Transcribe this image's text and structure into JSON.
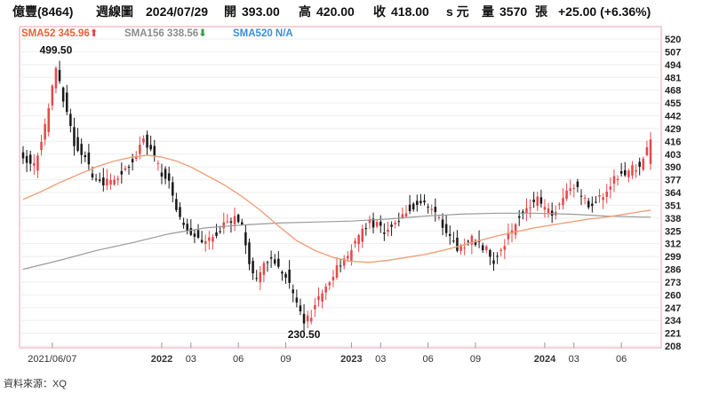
{
  "header": {
    "stock": "億豐(8464)",
    "period": "週線圖",
    "date": "2024/07/29",
    "open_label": "開",
    "open": "393.00",
    "high_label": "高",
    "high": "420.00",
    "close_label": "收",
    "close": "418.00",
    "close_suffix": "s 元",
    "volume_label": "量",
    "volume": "3570",
    "volume_unit": "張",
    "change": "+25.00 (+6.36%)"
  },
  "legend": [
    {
      "text": "SMA52 345.96",
      "arrow": "up",
      "color": "#e8603a"
    },
    {
      "text": "SMA156 338.56",
      "arrow": "down",
      "color": "#8c8c8c"
    },
    {
      "text": "SMA520 N/A",
      "arrow": "",
      "color": "#3a8fd8"
    }
  ],
  "source": "資料來源：XQ",
  "colors": {
    "up": "#e8484a",
    "down": "#1a1a1a",
    "sma52": "#f0a07a",
    "sma156": "#9a9a9a",
    "frame": "#f0a0a8",
    "grid": "#eeeeee"
  },
  "chart_data": {
    "type": "candlestick",
    "ylim": [
      208,
      520
    ],
    "yticks": [
      208,
      221,
      234,
      247,
      260,
      273,
      286,
      299,
      312,
      325,
      338,
      351,
      364,
      377,
      390,
      403,
      416,
      429,
      442,
      455,
      468,
      481,
      494,
      507,
      520
    ],
    "xticks": [
      {
        "label": "2021/06/07",
        "week": 8,
        "bold": false
      },
      {
        "label": "2022",
        "week": 38,
        "bold": true
      },
      {
        "label": "03",
        "week": 46,
        "bold": false
      },
      {
        "label": "06",
        "week": 59,
        "bold": false
      },
      {
        "label": "09",
        "week": 72,
        "bold": false
      },
      {
        "label": "2023",
        "week": 90,
        "bold": true
      },
      {
        "label": "03",
        "week": 98,
        "bold": false
      },
      {
        "label": "06",
        "week": 111,
        "bold": false
      },
      {
        "label": "09",
        "week": 124,
        "bold": false
      },
      {
        "label": "2024",
        "week": 143,
        "bold": true
      },
      {
        "label": "03",
        "week": 151,
        "bold": false
      },
      {
        "label": "06",
        "week": 164,
        "bold": false
      }
    ],
    "weeks": 173,
    "annotations": [
      {
        "text": "499.50",
        "week": 9,
        "value": 499.5,
        "pos": "above"
      },
      {
        "text": "230.50",
        "week": 77,
        "value": 230.5,
        "pos": "below"
      }
    ],
    "close_path": [
      [
        0,
        400
      ],
      [
        3,
        392
      ],
      [
        6,
        430
      ],
      [
        9,
        490
      ],
      [
        11,
        460
      ],
      [
        14,
        415
      ],
      [
        17,
        400
      ],
      [
        19,
        378
      ],
      [
        22,
        372
      ],
      [
        25,
        378
      ],
      [
        28,
        388
      ],
      [
        31,
        402
      ],
      [
        33,
        418
      ],
      [
        35,
        408
      ],
      [
        37,
        390
      ],
      [
        40,
        372
      ],
      [
        42,
        348
      ],
      [
        44,
        330
      ],
      [
        47,
        322
      ],
      [
        49,
        312
      ],
      [
        52,
        320
      ],
      [
        55,
        332
      ],
      [
        58,
        340
      ],
      [
        60,
        328
      ],
      [
        62,
        290
      ],
      [
        64,
        276
      ],
      [
        66,
        292
      ],
      [
        68,
        298
      ],
      [
        70,
        288
      ],
      [
        72,
        280
      ],
      [
        74,
        262
      ],
      [
        76,
        245
      ],
      [
        77,
        232
      ],
      [
        79,
        240
      ],
      [
        81,
        258
      ],
      [
        83,
        270
      ],
      [
        85,
        282
      ],
      [
        87,
        290
      ],
      [
        89,
        300
      ],
      [
        91,
        314
      ],
      [
        93,
        326
      ],
      [
        95,
        334
      ],
      [
        97,
        330
      ],
      [
        99,
        325
      ],
      [
        101,
        330
      ],
      [
        103,
        338
      ],
      [
        105,
        346
      ],
      [
        107,
        350
      ],
      [
        109,
        356
      ],
      [
        111,
        350
      ],
      [
        113,
        340
      ],
      [
        115,
        330
      ],
      [
        117,
        320
      ],
      [
        119,
        306
      ],
      [
        121,
        312
      ],
      [
        123,
        318
      ],
      [
        125,
        312
      ],
      [
        127,
        306
      ],
      [
        129,
        294
      ],
      [
        131,
        304
      ],
      [
        133,
        320
      ],
      [
        135,
        334
      ],
      [
        137,
        344
      ],
      [
        139,
        352
      ],
      [
        141,
        356
      ],
      [
        143,
        346
      ],
      [
        145,
        344
      ],
      [
        147,
        350
      ],
      [
        149,
        368
      ],
      [
        151,
        372
      ],
      [
        153,
        360
      ],
      [
        155,
        352
      ],
      [
        157,
        354
      ],
      [
        159,
        362
      ],
      [
        161,
        374
      ],
      [
        163,
        380
      ],
      [
        165,
        384
      ],
      [
        167,
        388
      ],
      [
        169,
        392
      ],
      [
        171,
        406
      ],
      [
        172,
        418
      ]
    ],
    "sma52": [
      [
        0,
        357
      ],
      [
        5,
        365
      ],
      [
        10,
        374
      ],
      [
        15,
        382
      ],
      [
        20,
        390
      ],
      [
        25,
        396
      ],
      [
        30,
        400
      ],
      [
        34,
        402
      ],
      [
        38,
        400
      ],
      [
        42,
        396
      ],
      [
        46,
        390
      ],
      [
        50,
        382
      ],
      [
        55,
        372
      ],
      [
        60,
        360
      ],
      [
        65,
        346
      ],
      [
        70,
        330
      ],
      [
        75,
        315
      ],
      [
        80,
        305
      ],
      [
        85,
        298
      ],
      [
        90,
        294
      ],
      [
        95,
        293
      ],
      [
        100,
        295
      ],
      [
        105,
        298
      ],
      [
        110,
        301
      ],
      [
        115,
        305
      ],
      [
        120,
        310
      ],
      [
        125,
        315
      ],
      [
        130,
        320
      ],
      [
        135,
        324
      ],
      [
        140,
        328
      ],
      [
        145,
        331
      ],
      [
        150,
        334
      ],
      [
        155,
        337
      ],
      [
        160,
        339
      ],
      [
        165,
        342
      ],
      [
        170,
        345
      ],
      [
        172,
        346
      ]
    ],
    "sma156": [
      [
        0,
        286
      ],
      [
        10,
        295
      ],
      [
        20,
        305
      ],
      [
        30,
        313
      ],
      [
        40,
        322
      ],
      [
        50,
        328
      ],
      [
        60,
        331
      ],
      [
        70,
        333
      ],
      [
        80,
        334
      ],
      [
        90,
        335
      ],
      [
        100,
        337
      ],
      [
        110,
        340
      ],
      [
        120,
        342
      ],
      [
        130,
        343
      ],
      [
        140,
        343
      ],
      [
        150,
        342
      ],
      [
        160,
        340
      ],
      [
        170,
        339
      ],
      [
        172,
        339
      ]
    ]
  }
}
